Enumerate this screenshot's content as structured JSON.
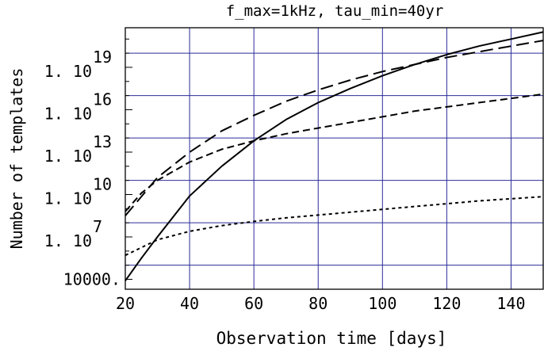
{
  "chart_data": {
    "type": "line",
    "title": "f_max=1kHz, tau_min=40yr",
    "xlabel": "Observation time [days]",
    "ylabel": "Number of templates",
    "xlim": [
      20,
      150
    ],
    "ylim_log10": [
      3.3,
      21.8
    ],
    "y_scale": "log",
    "grid": true,
    "x_ticks": [
      {
        "value": 20,
        "label": "20"
      },
      {
        "value": 40,
        "label": "40"
      },
      {
        "value": 60,
        "label": "60"
      },
      {
        "value": 80,
        "label": "80"
      },
      {
        "value": 100,
        "label": "100"
      },
      {
        "value": 120,
        "label": "120"
      },
      {
        "value": 140,
        "label": "140"
      }
    ],
    "y_tick_labels": [
      {
        "log10": 4,
        "mantissa": "10000.",
        "exp": ""
      },
      {
        "log10": 7,
        "mantissa": "1. 10",
        "exp": "7"
      },
      {
        "log10": 10,
        "mantissa": "1. 10",
        "exp": "10"
      },
      {
        "log10": 13,
        "mantissa": "1. 10",
        "exp": "13"
      },
      {
        "log10": 16,
        "mantissa": "1. 10",
        "exp": "16"
      },
      {
        "log10": 19,
        "mantissa": "1. 10",
        "exp": "19"
      }
    ],
    "y_gridlines_log10": [
      5,
      8,
      11,
      14,
      17,
      20
    ],
    "series": [
      {
        "style": "solid",
        "x": [
          20,
          25,
          30,
          40,
          50,
          60,
          70,
          80,
          90,
          100,
          110,
          120,
          130,
          140,
          150
        ],
        "log10_y": [
          3.9,
          5.5,
          7.0,
          9.9,
          12.0,
          13.8,
          15.3,
          16.5,
          17.5,
          18.4,
          19.2,
          19.9,
          20.5,
          21.0,
          21.5
        ]
      },
      {
        "style": "long-dashed",
        "x": [
          20,
          30,
          40,
          50,
          60,
          70,
          80,
          90,
          100,
          110,
          120,
          130,
          140,
          150
        ],
        "log10_y": [
          8.5,
          11.2,
          13.0,
          14.5,
          15.6,
          16.6,
          17.4,
          18.1,
          18.7,
          19.2,
          19.7,
          20.1,
          20.5,
          20.9
        ]
      },
      {
        "style": "dashed",
        "x": [
          20,
          25,
          30,
          40,
          50,
          60,
          70,
          80,
          90,
          100,
          110,
          120,
          130,
          140,
          150
        ],
        "log10_y": [
          8.8,
          10.1,
          11.0,
          12.3,
          13.2,
          13.8,
          14.3,
          14.7,
          15.1,
          15.5,
          15.9,
          16.2,
          16.5,
          16.8,
          17.1
        ]
      },
      {
        "style": "dotted",
        "x": [
          20,
          30,
          40,
          50,
          60,
          70,
          80,
          90,
          100,
          110,
          120,
          130,
          140,
          150
        ],
        "log10_y": [
          5.7,
          6.8,
          7.4,
          7.8,
          8.1,
          8.35,
          8.55,
          8.75,
          8.95,
          9.15,
          9.35,
          9.55,
          9.7,
          9.85
        ]
      }
    ]
  }
}
